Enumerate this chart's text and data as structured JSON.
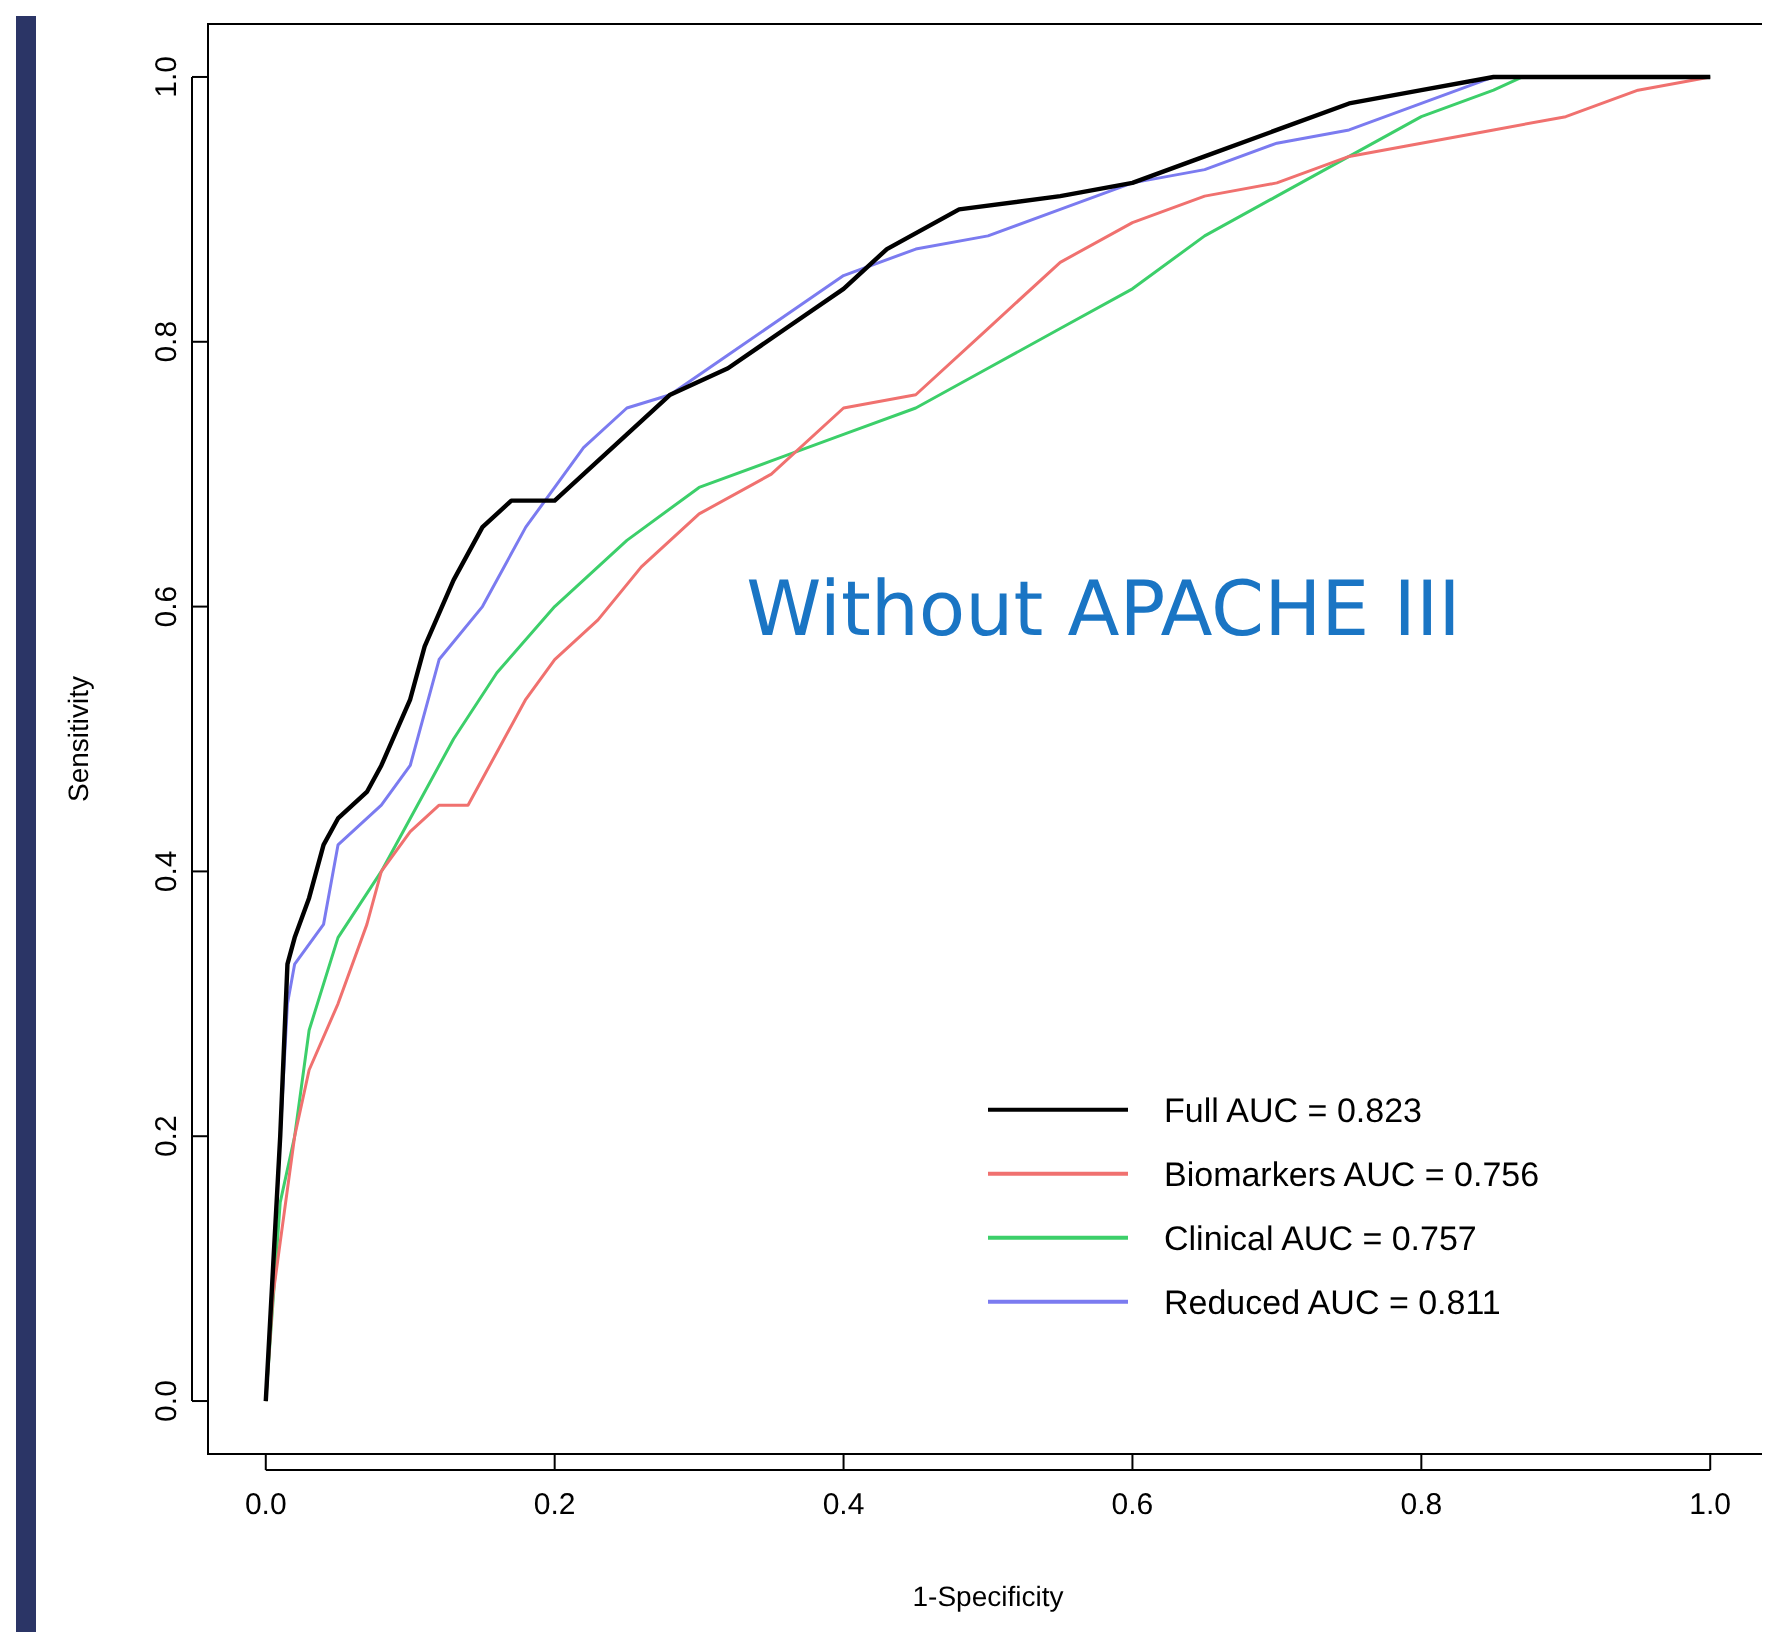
{
  "chart_data": {
    "type": "line",
    "xlabel": "1-Specificity",
    "ylabel": "Sensitivity",
    "xlim": [
      -0.04,
      1.04
    ],
    "ylim": [
      -0.04,
      1.04
    ],
    "xticks": [
      {
        "value": 0,
        "label": "0.0"
      },
      0.2,
      0.4,
      0.6,
      0.8,
      {
        "value": 1,
        "label": "1.0"
      }
    ],
    "yticks": [
      {
        "value": 0,
        "label": "0.0"
      },
      0.2,
      0.4,
      0.6,
      0.8,
      {
        "value": 1,
        "label": "1.0"
      }
    ],
    "grid": false,
    "legend": "bottom right",
    "annotations": [
      "Without APACHE III"
    ],
    "series": [
      {
        "name": "Full AUC = 0.823",
        "color": "#000000",
        "x": [
          0,
          0.005,
          0.01,
          0.015,
          0.02,
          0.03,
          0.04,
          0.05,
          0.07,
          0.08,
          0.1,
          0.11,
          0.13,
          0.15,
          0.17,
          0.2,
          0.22,
          0.25,
          0.28,
          0.32,
          0.36,
          0.4,
          0.43,
          0.48,
          0.55,
          0.6,
          0.65,
          0.7,
          0.75,
          0.8,
          0.85,
          1
        ],
        "values": [
          0,
          0.1,
          0.2,
          0.33,
          0.35,
          0.38,
          0.42,
          0.44,
          0.46,
          0.48,
          0.53,
          0.57,
          0.62,
          0.66,
          0.68,
          0.68,
          0.7,
          0.73,
          0.76,
          0.78,
          0.81,
          0.84,
          0.87,
          0.9,
          0.91,
          0.92,
          0.94,
          0.96,
          0.98,
          0.99,
          1,
          1
        ]
      },
      {
        "name": "Biomarkers AUC = 0.756",
        "color": "#f0716f",
        "x": [
          0,
          0.005,
          0.01,
          0.02,
          0.03,
          0.05,
          0.07,
          0.08,
          0.1,
          0.12,
          0.14,
          0.16,
          0.18,
          0.2,
          0.23,
          0.26,
          0.3,
          0.35,
          0.4,
          0.45,
          0.5,
          0.55,
          0.6,
          0.65,
          0.7,
          0.75,
          0.8,
          0.85,
          0.9,
          0.95,
          1
        ],
        "values": [
          0,
          0.08,
          0.12,
          0.2,
          0.25,
          0.3,
          0.36,
          0.4,
          0.43,
          0.45,
          0.45,
          0.49,
          0.53,
          0.56,
          0.59,
          0.63,
          0.67,
          0.7,
          0.75,
          0.76,
          0.81,
          0.86,
          0.89,
          0.91,
          0.92,
          0.94,
          0.95,
          0.96,
          0.97,
          0.99,
          1
        ]
      },
      {
        "name": "Clinical AUC = 0.757",
        "color": "#3ccf6a",
        "x": [
          0,
          0.01,
          0.02,
          0.03,
          0.05,
          0.08,
          0.1,
          0.13,
          0.16,
          0.2,
          0.25,
          0.3,
          0.35,
          0.4,
          0.45,
          0.5,
          0.55,
          0.6,
          0.65,
          0.7,
          0.75,
          0.8,
          0.85,
          0.87,
          1
        ],
        "values": [
          0,
          0.15,
          0.2,
          0.28,
          0.35,
          0.4,
          0.44,
          0.5,
          0.55,
          0.6,
          0.65,
          0.69,
          0.71,
          0.73,
          0.75,
          0.78,
          0.81,
          0.84,
          0.88,
          0.91,
          0.94,
          0.97,
          0.99,
          1,
          1
        ]
      },
      {
        "name": "Reduced AUC = 0.811",
        "color": "#7b7bf0",
        "x": [
          0,
          0.01,
          0.015,
          0.02,
          0.04,
          0.05,
          0.08,
          0.1,
          0.12,
          0.15,
          0.18,
          0.2,
          0.22,
          0.25,
          0.28,
          0.32,
          0.36,
          0.4,
          0.45,
          0.5,
          0.55,
          0.6,
          0.65,
          0.7,
          0.75,
          0.8,
          0.85,
          1
        ],
        "values": [
          0,
          0.2,
          0.3,
          0.33,
          0.36,
          0.42,
          0.45,
          0.48,
          0.56,
          0.6,
          0.66,
          0.69,
          0.72,
          0.75,
          0.76,
          0.79,
          0.82,
          0.85,
          0.87,
          0.88,
          0.9,
          0.92,
          0.93,
          0.95,
          0.96,
          0.98,
          1,
          1
        ]
      }
    ]
  }
}
